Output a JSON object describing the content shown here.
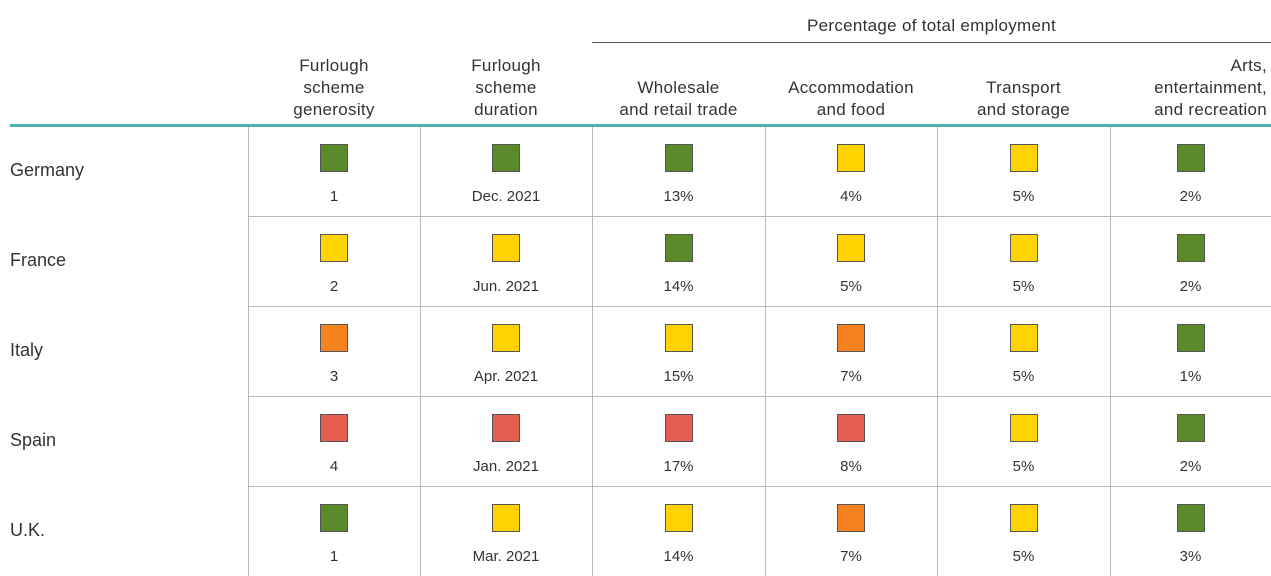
{
  "group_header": "Percentage of total employment",
  "columns": [
    [
      "Furlough",
      "scheme",
      "generosity"
    ],
    [
      "Furlough",
      "scheme",
      "duration"
    ],
    [
      "Wholesale",
      "and retail trade"
    ],
    [
      "Accommodation",
      "and food"
    ],
    [
      "Transport",
      "and storage"
    ],
    [
      "Arts,",
      "entertainment,",
      "and recreation"
    ]
  ],
  "rows": [
    {
      "country": "Germany",
      "cells": [
        {
          "text": "1",
          "color": "#5b8a2a"
        },
        {
          "text": "Dec. 2021",
          "color": "#5b8a2a"
        },
        {
          "text": "13%",
          "color": "#5b8a2a"
        },
        {
          "text": "4%",
          "color": "#ffd200"
        },
        {
          "text": "5%",
          "color": "#ffd200"
        },
        {
          "text": "2%",
          "color": "#5b8a2a"
        }
      ]
    },
    {
      "country": "France",
      "cells": [
        {
          "text": "2",
          "color": "#ffd200"
        },
        {
          "text": "Jun. 2021",
          "color": "#ffd200"
        },
        {
          "text": "14%",
          "color": "#5b8a2a"
        },
        {
          "text": "5%",
          "color": "#ffd200"
        },
        {
          "text": "5%",
          "color": "#ffd200"
        },
        {
          "text": "2%",
          "color": "#5b8a2a"
        }
      ]
    },
    {
      "country": "Italy",
      "cells": [
        {
          "text": "3",
          "color": "#f5821f"
        },
        {
          "text": "Apr. 2021",
          "color": "#ffd200"
        },
        {
          "text": "15%",
          "color": "#ffd200"
        },
        {
          "text": "7%",
          "color": "#f5821f"
        },
        {
          "text": "5%",
          "color": "#ffd200"
        },
        {
          "text": "1%",
          "color": "#5b8a2a"
        }
      ]
    },
    {
      "country": "Spain",
      "cells": [
        {
          "text": "4",
          "color": "#e55d4f"
        },
        {
          "text": "Jan. 2021",
          "color": "#e55d4f"
        },
        {
          "text": "17%",
          "color": "#e55d4f"
        },
        {
          "text": "8%",
          "color": "#e55d4f"
        },
        {
          "text": "5%",
          "color": "#ffd200"
        },
        {
          "text": "2%",
          "color": "#5b8a2a"
        }
      ]
    },
    {
      "country": "U.K.",
      "cells": [
        {
          "text": "1",
          "color": "#5b8a2a"
        },
        {
          "text": "Mar. 2021",
          "color": "#ffd200"
        },
        {
          "text": "14%",
          "color": "#ffd200"
        },
        {
          "text": "7%",
          "color": "#f5821f"
        },
        {
          "text": "5%",
          "color": "#ffd200"
        },
        {
          "text": "3%",
          "color": "#5b8a2a"
        }
      ]
    }
  ]
}
